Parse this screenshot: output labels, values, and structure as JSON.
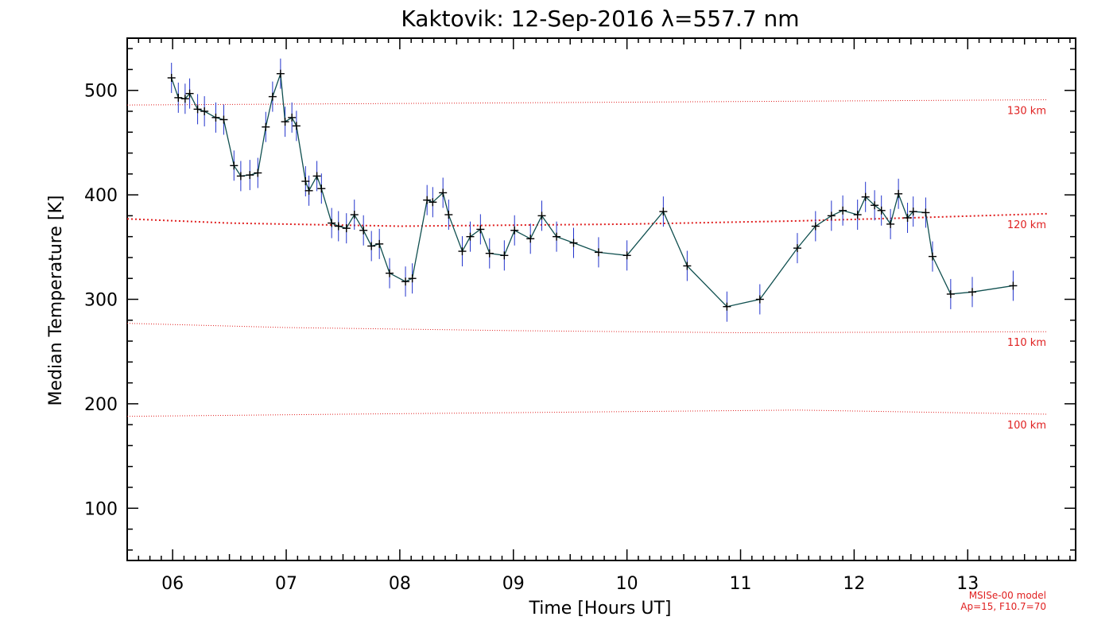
{
  "chart_data": {
    "type": "line",
    "title": "Kaktovik: 12-Sep-2016 λ=557.7 nm",
    "xlabel": "Time [Hours UT]",
    "ylabel": "Median Temperature [K]",
    "xlim": [
      5.6,
      13.95
    ],
    "ylim": [
      50,
      550
    ],
    "xticks": [
      6,
      7,
      8,
      9,
      10,
      11,
      12,
      13
    ],
    "xtick_labels": [
      "06",
      "07",
      "08",
      "09",
      "10",
      "11",
      "12",
      "13"
    ],
    "yticks": [
      100,
      200,
      300,
      400,
      500
    ],
    "ytick_labels": [
      "100",
      "200",
      "300",
      "400",
      "500"
    ],
    "grid": false,
    "colors": {
      "series_line": "#0f4f4f",
      "error_bars": "#2233cc",
      "markers": "#000000",
      "model_lines": "#e02020"
    },
    "series": [
      {
        "x": [
          5.99,
          6.05,
          6.11,
          6.15,
          6.22,
          6.28,
          6.38,
          6.45,
          6.54,
          6.6,
          6.68,
          6.75,
          6.82,
          6.88,
          6.95,
          6.99,
          7.05,
          7.09,
          7.17,
          7.2,
          7.27,
          7.31,
          7.4,
          7.46,
          7.53,
          7.6,
          7.68,
          7.75,
          7.82,
          7.91,
          8.05,
          8.11,
          8.24,
          8.29,
          8.38,
          8.43,
          8.55,
          8.62,
          8.71,
          8.79,
          8.92,
          9.01,
          9.15,
          9.25,
          9.38,
          9.53,
          9.75,
          10.0,
          10.32,
          10.53,
          10.88,
          11.17,
          11.5,
          11.66,
          11.8,
          11.9,
          12.03,
          12.1,
          12.18,
          12.24,
          12.32,
          12.39,
          12.47,
          12.52,
          12.63,
          12.69,
          12.85,
          13.04,
          13.4
        ],
        "y": [
          512,
          493,
          492,
          497,
          482,
          480,
          474,
          472,
          428,
          418,
          419,
          421,
          465,
          494,
          516,
          470,
          474,
          466,
          413,
          404,
          418,
          406,
          373,
          370,
          368,
          381,
          366,
          351,
          353,
          325,
          317,
          320,
          395,
          393,
          402,
          381,
          346,
          360,
          367,
          344,
          342,
          366,
          358,
          380,
          360,
          354,
          345,
          342,
          384,
          332,
          293,
          300,
          349,
          370,
          380,
          385,
          381,
          398,
          390,
          385,
          372,
          401,
          378,
          384,
          383,
          341,
          305,
          307,
          313
        ]
      }
    ],
    "model_lines": [
      {
        "label": "130 km",
        "x": [
          5.6,
          13.7
        ],
        "y": [
          486,
          491
        ]
      },
      {
        "label": "120 km",
        "x": [
          5.6,
          6.5,
          8.0,
          10.0,
          11.5,
          12.5,
          13.7
        ],
        "y": [
          377,
          373,
          370,
          372,
          375,
          378,
          382
        ]
      },
      {
        "label": "110 km",
        "x": [
          5.6,
          7.0,
          9.0,
          11.0,
          13.7
        ],
        "y": [
          277,
          273,
          270,
          268,
          269
        ]
      },
      {
        "label": "100 km",
        "x": [
          5.6,
          7.5,
          9.5,
          11.5,
          13.7
        ],
        "y": [
          188,
          190,
          192,
          194,
          190
        ]
      }
    ],
    "annotations": [
      "MSISe-00 model",
      "Ap=15, F10.7=70"
    ]
  }
}
